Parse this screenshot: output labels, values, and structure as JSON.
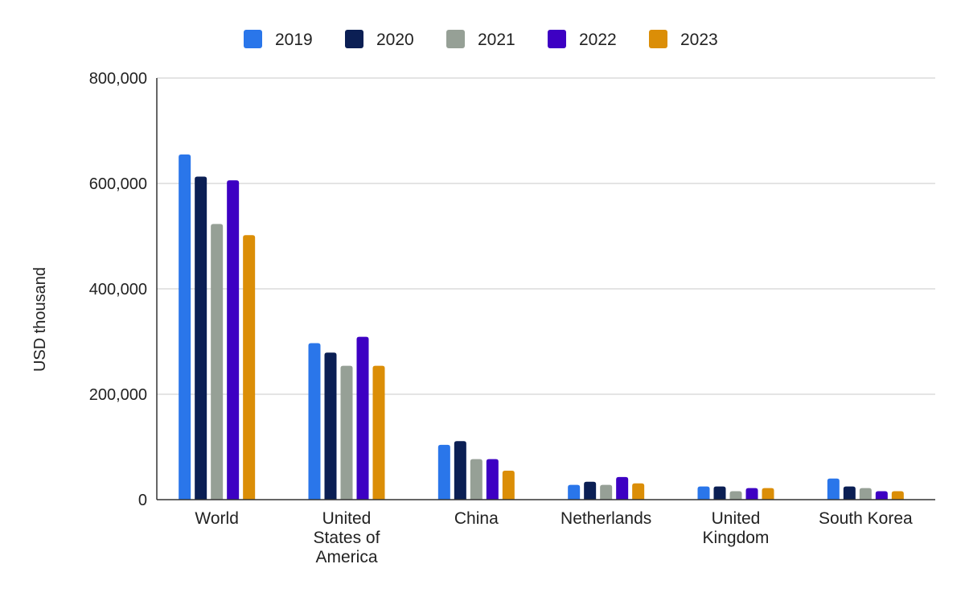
{
  "chart_data": {
    "type": "bar",
    "title": "",
    "xlabel": "",
    "ylabel": "USD thousand",
    "ylim": [
      0,
      800000
    ],
    "y_ticks": [
      0,
      200000,
      400000,
      600000,
      800000
    ],
    "y_tick_labels": [
      "0",
      "200,000",
      "400,000",
      "600,000",
      "800,000"
    ],
    "grid": true,
    "legend_position": "top",
    "categories": [
      "World",
      "United States of America",
      "China",
      "Netherlands",
      "United Kingdom",
      "South Korea"
    ],
    "category_label_lines": [
      [
        "World"
      ],
      [
        "United",
        "States of",
        "America"
      ],
      [
        "China"
      ],
      [
        "Netherlands"
      ],
      [
        "United",
        "Kingdom"
      ],
      [
        "South Korea"
      ]
    ],
    "series": [
      {
        "name": "2019",
        "color": "#2a76ea",
        "values": [
          655000,
          297000,
          104000,
          28000,
          25000,
          40000
        ]
      },
      {
        "name": "2020",
        "color": "#0b1f54",
        "values": [
          613000,
          279000,
          111000,
          34000,
          25000,
          25000
        ]
      },
      {
        "name": "2021",
        "color": "#96a096",
        "values": [
          523000,
          254000,
          77000,
          28000,
          16000,
          22000
        ]
      },
      {
        "name": "2022",
        "color": "#3d00c3",
        "values": [
          606000,
          309000,
          77000,
          43000,
          22000,
          16000
        ]
      },
      {
        "name": "2023",
        "color": "#db8e07",
        "values": [
          502000,
          254000,
          55000,
          31000,
          22000,
          16000
        ]
      }
    ]
  }
}
